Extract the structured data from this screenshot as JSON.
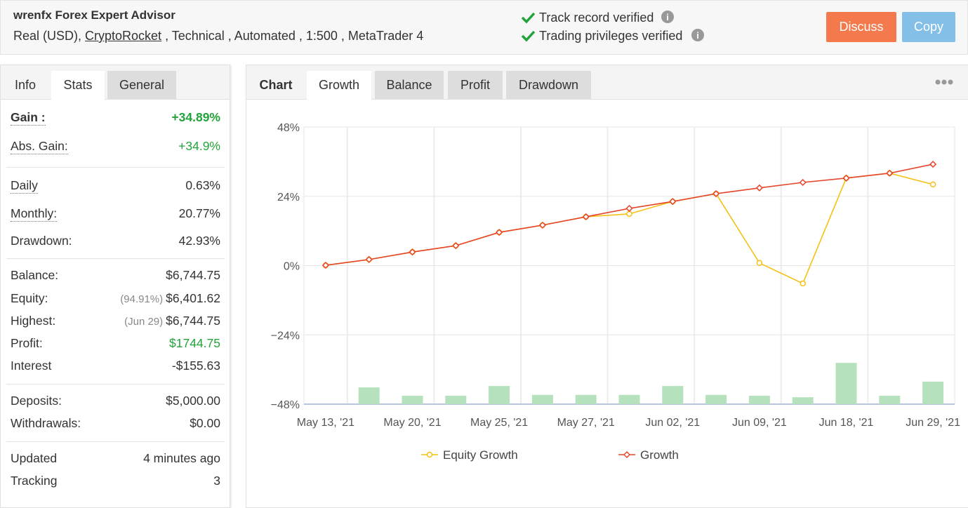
{
  "header": {
    "title": "wrenfx Forex Expert Advisor",
    "account": "Real (USD), ",
    "broker": "CryptoRocket",
    "details": " , Technical , Automated , 1:500 , MetaTrader 4",
    "verifications": [
      "Track record verified",
      "Trading privileges verified"
    ],
    "buttons": [
      "Discuss",
      "Copy"
    ]
  },
  "stats_panel": {
    "tabs": [
      "Info",
      "Stats",
      "General"
    ],
    "groups": [
      [
        {
          "label": "Gain :",
          "value": "+34.89%"
        },
        {
          "label": "Abs. Gain:",
          "value": "+34.9%"
        }
      ],
      [
        {
          "label": "Daily",
          "value": "0.63%"
        },
        {
          "label": "Monthly:",
          "value": "20.77%"
        },
        {
          "label": "Drawdown:",
          "value": "42.93%"
        }
      ],
      [
        {
          "label": "Balance:",
          "value": "$6,744.75"
        },
        {
          "label": "Equity:",
          "note": "(94.91%)",
          "value": "$6,401.62"
        },
        {
          "label": "Highest:",
          "note": "(Jun 29)",
          "value": "$6,744.75"
        },
        {
          "label": "Profit:",
          "value": "$1744.75"
        },
        {
          "label": "Interest",
          "value": "-$155.63"
        }
      ],
      [
        {
          "label": "Deposits:",
          "value": "$5,000.00"
        },
        {
          "label": "Withdrawals:",
          "value": "$0.00"
        }
      ],
      [
        {
          "label": "Updated",
          "value": "4 minutes ago"
        },
        {
          "label": "Tracking",
          "value": "3"
        }
      ]
    ]
  },
  "chart_panel": {
    "tabs": [
      "Chart",
      "Growth",
      "Balance",
      "Profit",
      "Drawdown"
    ],
    "chart_data": {
      "type": "line",
      "categories": [
        "May 13, '21",
        null,
        "May 20, '21",
        null,
        "May 25, '21",
        null,
        "May 27, '21",
        null,
        "Jun 02, '21",
        null,
        "Jun 09, '21",
        null,
        "Jun 18, '21",
        null,
        "Jun 29, '21"
      ],
      "series": [
        {
          "name": "Equity Growth",
          "color": "#f5c013",
          "marker": "circle",
          "values": [
            0.1,
            2.1,
            4.7,
            6.9,
            11.5,
            14.0,
            16.9,
            17.9,
            22.2,
            24.9,
            0.9,
            -6.2,
            30.3,
            32.0,
            28.1
          ]
        },
        {
          "name": "Growth",
          "color": "#e5452b",
          "marker": "diamond",
          "values": [
            0.1,
            2.1,
            4.7,
            6.9,
            11.5,
            14.0,
            16.9,
            19.8,
            22.2,
            24.9,
            26.9,
            28.8,
            30.3,
            32.0,
            35.1
          ]
        }
      ],
      "bars": {
        "color": "#b5e2bd",
        "values": [
          null,
          -42.2,
          -45.1,
          -45.1,
          -41.7,
          -44.8,
          -44.8,
          -44.8,
          -41.7,
          -44.8,
          -45.1,
          -45.6,
          -33.7,
          -45.1,
          -40.2
        ]
      },
      "ylim": [
        -48,
        48
      ],
      "yticks": [
        {
          "value": 48,
          "label": "48%"
        },
        {
          "value": 24,
          "label": "24%"
        },
        {
          "value": 0,
          "label": "0%"
        },
        {
          "value": -24,
          "label": "−24%"
        },
        {
          "value": -48,
          "label": "−48%"
        }
      ],
      "grid": true
    }
  }
}
